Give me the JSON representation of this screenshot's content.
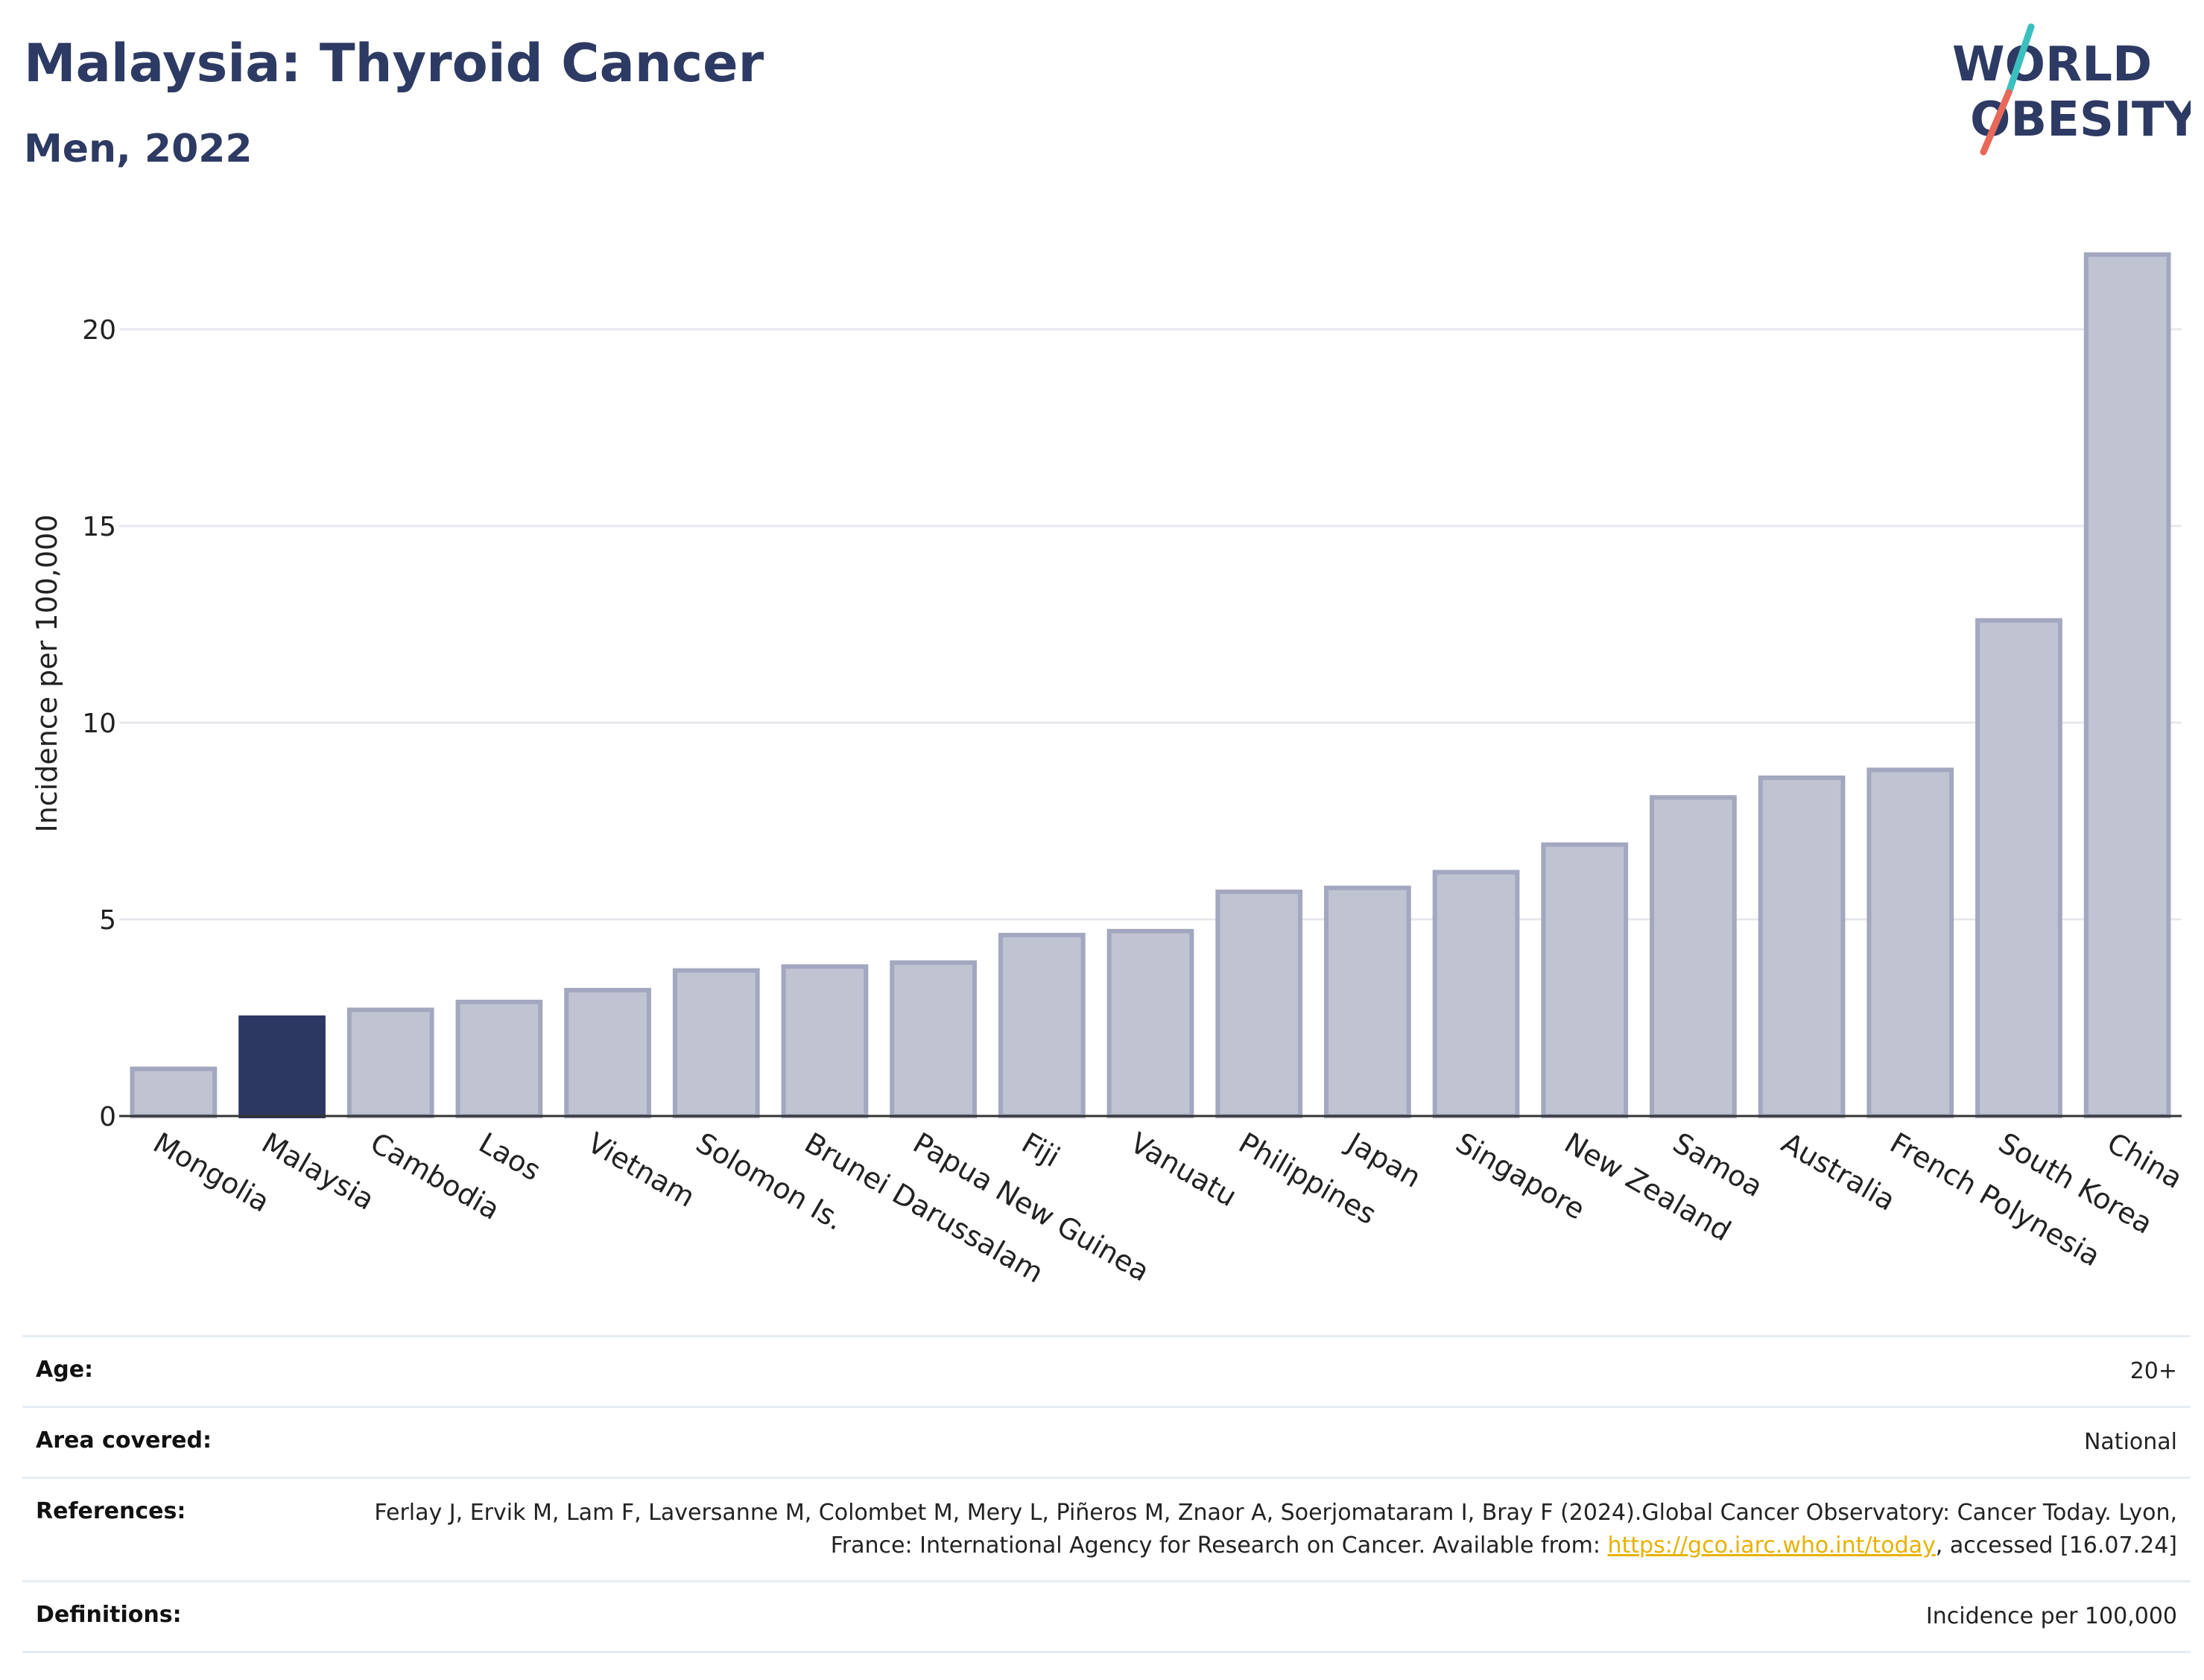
{
  "header": {
    "title": "Malaysia: Thyroid Cancer",
    "subtitle": "Men, 2022"
  },
  "logo": {
    "line1": "WORLD",
    "line2": "OBESITY",
    "colors": {
      "text": "#2d3a63",
      "slash_top": "#3bbfbf",
      "slash_bottom": "#e8685a"
    }
  },
  "colors": {
    "highlight_bar": "#2d3862",
    "other_bar_fill": "#c0c3d2",
    "other_bar_stroke": "#a3a7bf",
    "grid": "#e6e8ec",
    "axis": "#333333"
  },
  "chart_data": {
    "type": "bar",
    "title": "Malaysia: Thyroid Cancer",
    "subtitle": "Men, 2022",
    "xlabel": "",
    "ylabel": "Incidence per 100,000",
    "categories": [
      "Mongolia",
      "Malaysia",
      "Cambodia",
      "Laos",
      "Vietnam",
      "Solomon Is.",
      "Brunei Darussalam",
      "Papua New Guinea",
      "Fiji",
      "Vanuatu",
      "Philippines",
      "Japan",
      "Singapore",
      "New Zealand",
      "Samoa",
      "Australia",
      "French Polynesia",
      "South Korea",
      "China"
    ],
    "values": [
      1.2,
      2.5,
      2.7,
      2.9,
      3.2,
      3.7,
      3.8,
      3.9,
      4.6,
      4.7,
      5.7,
      5.8,
      6.2,
      6.9,
      8.1,
      8.6,
      8.8,
      12.6,
      21.9
    ],
    "highlight": "Malaysia",
    "ylim": [
      0,
      22.5
    ],
    "yticks": [
      0,
      5,
      10,
      15,
      20
    ],
    "grid": true,
    "legend": "none"
  },
  "info": {
    "age_label": "Age:",
    "age_value": "20+",
    "area_label": "Area covered:",
    "area_value": "National",
    "references_label": "References:",
    "references_text_1": "Ferlay J, Ervik M, Lam F, Laversanne M, Colombet M, Mery L, Piñeros M, Znaor A, Soerjomataram I, Bray F (2024).Global Cancer Observatory: Cancer Today. Lyon, France: International Agency for Research on Cancer. Available from: ",
    "references_link": "https://gco.iarc.who.int/today",
    "references_text_2": ", accessed [16.07.24]",
    "definitions_label": "Definitions:",
    "definitions_value": "Incidence per 100,000"
  }
}
